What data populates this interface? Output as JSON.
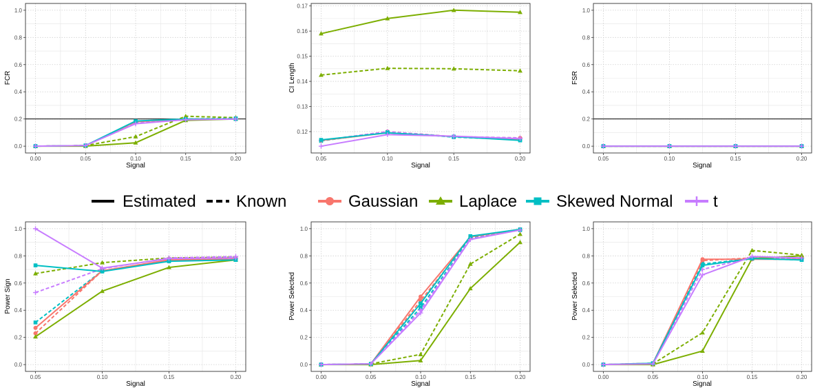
{
  "colors": {
    "Gaussian": "#F8766D",
    "Laplace": "#7CAE00",
    "Skewed Normal": "#00BFC4",
    "t": "#C77CFF",
    "reference_line": "#000000"
  },
  "legend": {
    "linetype_items": [
      {
        "label": "Estimated",
        "style": "solid"
      },
      {
        "label": "Known",
        "style": "dashed"
      }
    ],
    "color_items": [
      {
        "label": "Gaussian",
        "shape": "circle"
      },
      {
        "label": "Laplace",
        "shape": "triangle"
      },
      {
        "label": "Skewed Normal",
        "shape": "square"
      },
      {
        "label": "t",
        "shape": "plus"
      }
    ]
  },
  "chart_data": [
    {
      "type": "line",
      "xlabel": "Signal",
      "ylabel": "FCR",
      "x": [
        0,
        0.05,
        0.1,
        0.15,
        0.2
      ],
      "xlim": [
        -0.01,
        0.21
      ],
      "ylim": [
        -0.05,
        1.05
      ],
      "xticks": [
        "0.00",
        "0.05",
        "0.10",
        "0.15",
        "0.20"
      ],
      "yticks": [
        "0.0",
        "0.2",
        "0.4",
        "0.6",
        "0.8",
        "1.0"
      ],
      "hline": 0.2,
      "series": [
        {
          "name": "Gaussian",
          "style": "solid",
          "values": [
            0,
            0.005,
            0.18,
            0.2,
            0.2
          ]
        },
        {
          "name": "Gaussian",
          "style": "dashed",
          "values": [
            0,
            0.005,
            0.18,
            0.2,
            0.2
          ]
        },
        {
          "name": "Laplace",
          "style": "solid",
          "values": [
            0,
            0,
            0.025,
            0.19,
            0.2
          ]
        },
        {
          "name": "Laplace",
          "style": "dashed",
          "values": [
            0,
            0.005,
            0.07,
            0.22,
            0.21
          ]
        },
        {
          "name": "Skewed Normal",
          "style": "solid",
          "values": [
            0,
            0.005,
            0.185,
            0.2,
            0.2
          ]
        },
        {
          "name": "Skewed Normal",
          "style": "dashed",
          "values": [
            0,
            0.005,
            0.18,
            0.2,
            0.205
          ]
        },
        {
          "name": "t",
          "style": "solid",
          "values": [
            0,
            0.005,
            0.165,
            0.195,
            0.2
          ]
        },
        {
          "name": "t",
          "style": "dashed",
          "values": [
            0,
            0.005,
            0.17,
            0.195,
            0.2
          ]
        }
      ]
    },
    {
      "type": "line",
      "xlabel": "Signal",
      "ylabel": "CI Length",
      "x": [
        0.05,
        0.1,
        0.15,
        0.2
      ],
      "xlim": [
        0.0425,
        0.2075
      ],
      "ylim": [
        0.1115,
        0.171
      ],
      "xticks": [
        "0.05",
        "0.10",
        "0.15",
        "0.20"
      ],
      "yticks": [
        "0.12",
        "0.13",
        "0.14",
        "0.15",
        "0.16",
        "0.17"
      ],
      "series": [
        {
          "name": "Gaussian",
          "style": "solid",
          "values": [
            0.1165,
            0.1195,
            0.118,
            0.117
          ]
        },
        {
          "name": "Gaussian",
          "style": "dashed",
          "values": [
            0.1165,
            0.12,
            0.118,
            0.1175
          ]
        },
        {
          "name": "Laplace",
          "style": "solid",
          "values": [
            0.159,
            0.165,
            0.1683,
            0.1675
          ]
        },
        {
          "name": "Laplace",
          "style": "dashed",
          "values": [
            0.1425,
            0.1452,
            0.145,
            0.1442
          ]
        },
        {
          "name": "Skewed Normal",
          "style": "solid",
          "values": [
            0.1167,
            0.1195,
            0.118,
            0.1165
          ]
        },
        {
          "name": "Skewed Normal",
          "style": "dashed",
          "values": [
            0.1163,
            0.1198,
            0.1178,
            0.1168
          ]
        },
        {
          "name": "t",
          "style": "solid",
          "values": [
            0.1142,
            0.1188,
            0.1182,
            0.1172
          ]
        },
        {
          "name": "t",
          "style": "dashed",
          "values": [
            0.1165,
            0.12,
            0.118,
            0.1175
          ]
        }
      ]
    },
    {
      "type": "line",
      "xlabel": "Signal",
      "ylabel": "FSR",
      "x": [
        0.05,
        0.1,
        0.15,
        0.2
      ],
      "xlim": [
        0.0425,
        0.2075
      ],
      "ylim": [
        -0.05,
        1.05
      ],
      "xticks": [
        "0.05",
        "0.10",
        "0.15",
        "0.20"
      ],
      "yticks": [
        "0.0",
        "0.2",
        "0.4",
        "0.6",
        "0.8",
        "1.0"
      ],
      "hline": 0.2,
      "series": [
        {
          "name": "Gaussian",
          "style": "solid",
          "values": [
            0,
            0,
            0,
            0
          ]
        },
        {
          "name": "Gaussian",
          "style": "dashed",
          "values": [
            0,
            0,
            0,
            0
          ]
        },
        {
          "name": "Laplace",
          "style": "solid",
          "values": [
            0,
            0,
            0,
            0
          ]
        },
        {
          "name": "Laplace",
          "style": "dashed",
          "values": [
            0,
            0,
            0,
            0
          ]
        },
        {
          "name": "Skewed Normal",
          "style": "solid",
          "values": [
            0,
            0,
            0,
            0
          ]
        },
        {
          "name": "Skewed Normal",
          "style": "dashed",
          "values": [
            0,
            0,
            0,
            0
          ]
        },
        {
          "name": "t",
          "style": "solid",
          "values": [
            0,
            0,
            0,
            0
          ]
        },
        {
          "name": "t",
          "style": "dashed",
          "values": [
            0,
            0,
            0,
            0
          ]
        }
      ]
    },
    {
      "type": "line",
      "xlabel": "Signal",
      "ylabel": "Power Sign",
      "x": [
        0.05,
        0.1,
        0.15,
        0.2
      ],
      "xlim": [
        0.0425,
        0.2075
      ],
      "ylim": [
        -0.05,
        1.05
      ],
      "xticks": [
        "0.05",
        "0.10",
        "0.15",
        "0.20"
      ],
      "yticks": [
        "0.0",
        "0.2",
        "0.4",
        "0.6",
        "0.8",
        "1.0"
      ],
      "series": [
        {
          "name": "Gaussian",
          "style": "solid",
          "values": [
            0.27,
            0.69,
            0.77,
            0.775
          ]
        },
        {
          "name": "Gaussian",
          "style": "dashed",
          "values": [
            0.23,
            0.69,
            0.77,
            0.78
          ]
        },
        {
          "name": "Laplace",
          "style": "solid",
          "values": [
            0.205,
            0.54,
            0.715,
            0.77
          ]
        },
        {
          "name": "Laplace",
          "style": "dashed",
          "values": [
            0.67,
            0.75,
            0.785,
            0.79
          ]
        },
        {
          "name": "Skewed Normal",
          "style": "solid",
          "values": [
            0.73,
            0.685,
            0.76,
            0.77
          ]
        },
        {
          "name": "Skewed Normal",
          "style": "dashed",
          "values": [
            0.31,
            0.69,
            0.765,
            0.775
          ]
        },
        {
          "name": "t",
          "style": "solid",
          "values": [
            1.0,
            0.71,
            0.78,
            0.785
          ]
        },
        {
          "name": "t",
          "style": "dashed",
          "values": [
            0.53,
            0.705,
            0.785,
            0.795
          ]
        }
      ]
    },
    {
      "type": "line",
      "xlabel": "Signal",
      "ylabel": "Power Selected",
      "x": [
        0,
        0.05,
        0.1,
        0.15,
        0.2
      ],
      "xlim": [
        -0.01,
        0.21
      ],
      "ylim": [
        -0.05,
        1.05
      ],
      "xticks": [
        "0.00",
        "0.05",
        "0.10",
        "0.15",
        "0.20"
      ],
      "yticks": [
        "0.0",
        "0.2",
        "0.4",
        "0.6",
        "0.8",
        "1.0"
      ],
      "series": [
        {
          "name": "Gaussian",
          "style": "solid",
          "values": [
            0,
            0.005,
            0.5,
            0.94,
            0.995
          ]
        },
        {
          "name": "Gaussian",
          "style": "dashed",
          "values": [
            0,
            0.005,
            0.47,
            0.93,
            0.99
          ]
        },
        {
          "name": "Laplace",
          "style": "solid",
          "values": [
            0,
            0,
            0.03,
            0.56,
            0.9
          ]
        },
        {
          "name": "Laplace",
          "style": "dashed",
          "values": [
            0,
            0.005,
            0.075,
            0.74,
            0.96
          ]
        },
        {
          "name": "Skewed Normal",
          "style": "solid",
          "values": [
            0,
            0.005,
            0.45,
            0.945,
            0.995
          ]
        },
        {
          "name": "Skewed Normal",
          "style": "dashed",
          "values": [
            0,
            0.005,
            0.42,
            0.93,
            0.99
          ]
        },
        {
          "name": "t",
          "style": "solid",
          "values": [
            0,
            0.005,
            0.38,
            0.92,
            0.99
          ]
        },
        {
          "name": "t",
          "style": "dashed",
          "values": [
            0,
            0.005,
            0.4,
            0.925,
            0.99
          ]
        }
      ]
    },
    {
      "type": "line",
      "xlabel": "Signal",
      "ylabel": "Power Selected",
      "x": [
        0,
        0.05,
        0.1,
        0.15,
        0.2
      ],
      "xlim": [
        -0.01,
        0.21
      ],
      "ylim": [
        -0.05,
        1.05
      ],
      "xticks": [
        "0.00",
        "0.05",
        "0.10",
        "0.15",
        "0.20"
      ],
      "yticks": [
        "0.0",
        "0.2",
        "0.4",
        "0.6",
        "0.8",
        "1.0"
      ],
      "series": [
        {
          "name": "Gaussian",
          "style": "solid",
          "values": [
            0,
            0.01,
            0.775,
            0.775,
            0.775
          ]
        },
        {
          "name": "Gaussian",
          "style": "dashed",
          "values": [
            0,
            0.01,
            0.765,
            0.785,
            0.78
          ]
        },
        {
          "name": "Laplace",
          "style": "solid",
          "values": [
            0,
            0,
            0.1,
            0.78,
            0.8
          ]
        },
        {
          "name": "Laplace",
          "style": "dashed",
          "values": [
            0,
            0.005,
            0.235,
            0.84,
            0.805
          ]
        },
        {
          "name": "Skewed Normal",
          "style": "solid",
          "values": [
            0,
            0.01,
            0.73,
            0.78,
            0.77
          ]
        },
        {
          "name": "Skewed Normal",
          "style": "dashed",
          "values": [
            0,
            0.01,
            0.74,
            0.78,
            0.77
          ]
        },
        {
          "name": "t",
          "style": "solid",
          "values": [
            0,
            0.005,
            0.66,
            0.795,
            0.785
          ]
        },
        {
          "name": "t",
          "style": "dashed",
          "values": [
            0,
            0.005,
            0.7,
            0.79,
            0.78
          ]
        }
      ]
    }
  ]
}
